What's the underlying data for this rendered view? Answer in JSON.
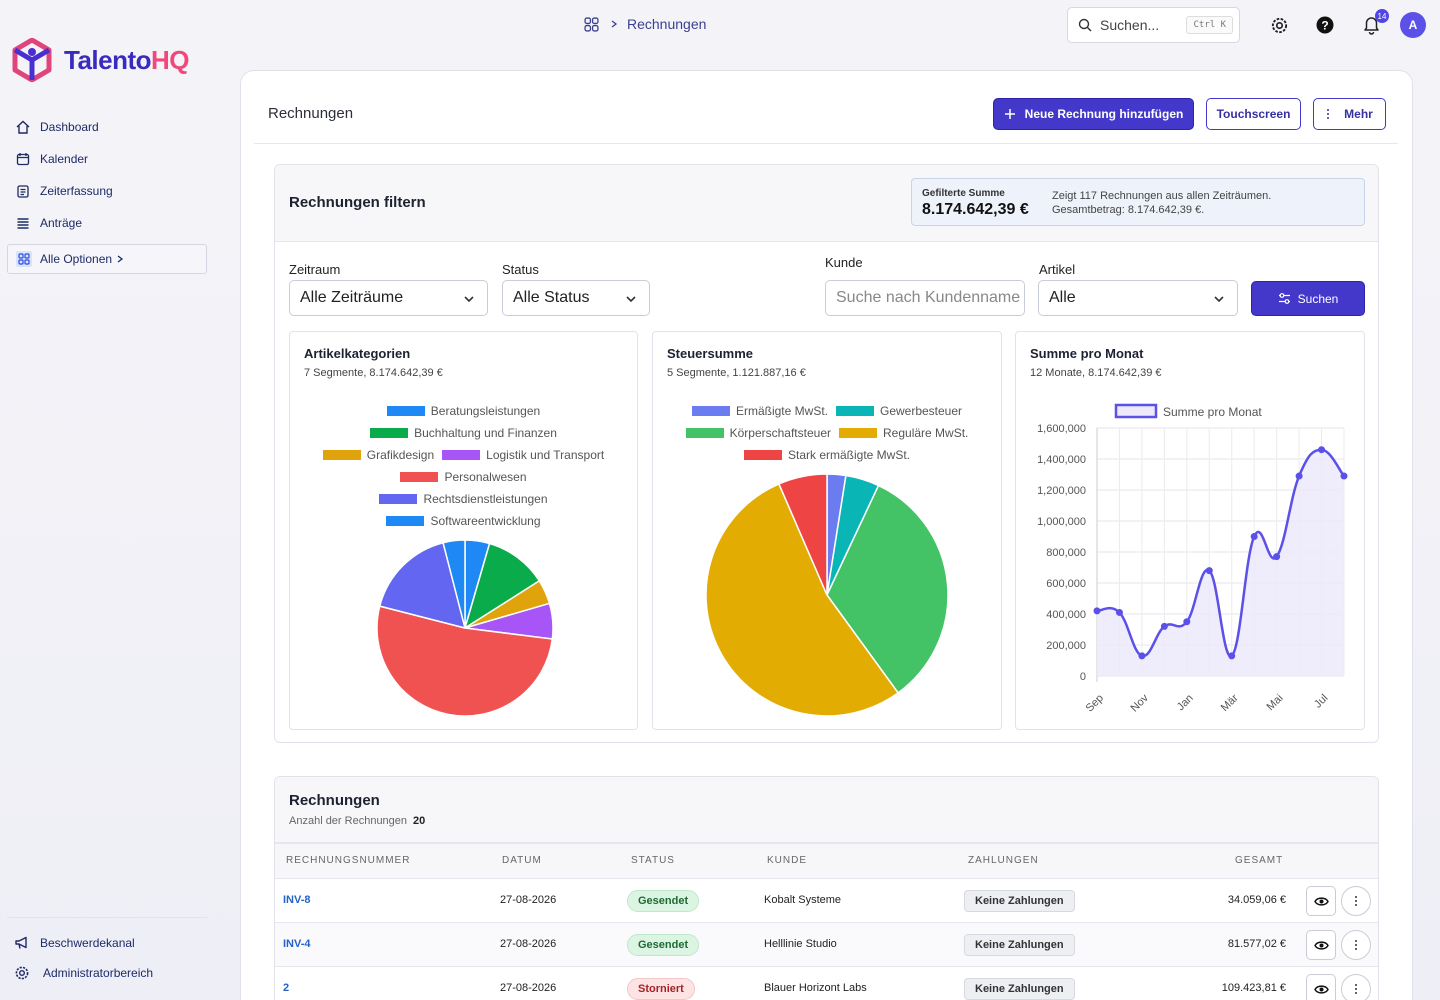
{
  "app": {
    "name_part1": "Talento",
    "name_part2": "HQ"
  },
  "sidebar": {
    "items": [
      {
        "label": "Dashboard",
        "icon": "home-icon"
      },
      {
        "label": "Kalender",
        "icon": "calendar-icon"
      },
      {
        "label": "Zeiterfassung",
        "icon": "clipboard-icon"
      },
      {
        "label": "Anträge",
        "icon": "list-icon"
      }
    ],
    "all_options": "Alle Optionen",
    "bottom": [
      {
        "label": "Beschwerdekanal",
        "icon": "megaphone-icon"
      },
      {
        "label": "Administratorbereich",
        "icon": "gear-icon"
      }
    ]
  },
  "topbar": {
    "breadcrumb": "Rechnungen",
    "search_label": "Suchen...",
    "search_shortcut": "Ctrl K",
    "notification_count": "14",
    "avatar_initial": "A"
  },
  "page": {
    "title": "Rechnungen",
    "btn_new": "Neue Rechnung hinzufügen",
    "btn_touch": "Touchscreen",
    "btn_more": "Mehr"
  },
  "filter": {
    "title": "Rechnungen filtern",
    "sum_label": "Gefilterte Summe",
    "sum_value": "8.174.642,39 €",
    "sum_desc1": "Zeigt 117 Rechnungen aus allen Zeiträumen.",
    "sum_desc2": "Gesamtbetrag: 8.174.642,39 €.",
    "zeitraum_label": "Zeitraum",
    "zeitraum_value": "Alle Zeiträume",
    "status_label": "Status",
    "status_value": "Alle Status",
    "kunde_label": "Kunde",
    "kunde_placeholder": "Suche nach Kundenname",
    "artikel_label": "Artikel",
    "artikel_value": "Alle",
    "search_btn": "Suchen"
  },
  "chart_data": [
    {
      "type": "pie",
      "title": "Artikelkategorien",
      "subtitle": "7 Segmente, 8.174.642,39 €",
      "categories": [
        "Beratungsleistungen",
        "Buchhaltung und Finanzen",
        "Grafikdesign",
        "Logistik und Transport",
        "Personalwesen",
        "Rechtsdienstleistungen",
        "Softwareentwicklung"
      ],
      "values": [
        4.5,
        11.5,
        4.5,
        6.5,
        52,
        17,
        4
      ],
      "colors": [
        "#1e88f5",
        "#0aab4b",
        "#e0a30c",
        "#a855f7",
        "#f05252",
        "#6366f1",
        "#1e88f5"
      ],
      "legend_rows": [
        [
          0
        ],
        [
          1
        ],
        [
          2,
          3
        ],
        [
          4
        ],
        [
          5
        ],
        [
          6
        ]
      ]
    },
    {
      "type": "pie",
      "title": "Steuersumme",
      "subtitle": "5 Segmente, 1.121.887,16 €",
      "categories": [
        "Ermäßigte MwSt.",
        "Gewerbesteuer",
        "Körperschaftsteuer",
        "Reguläre MwSt.",
        "Stark ermäßigte MwSt."
      ],
      "values": [
        2.5,
        4.5,
        33,
        53.5,
        6.5
      ],
      "colors": [
        "#6b7cf0",
        "#0ab5b5",
        "#44c266",
        "#e3ac02",
        "#ef4444"
      ],
      "legend_rows": [
        [
          0,
          1
        ],
        [
          2,
          3
        ],
        [
          4
        ]
      ]
    },
    {
      "type": "area",
      "title": "Summe pro Monat",
      "subtitle": "12 Monate, 8.174.642,39 €",
      "series": [
        {
          "name": "Summe pro Monat",
          "values": [
            420000,
            410000,
            130000,
            320000,
            350000,
            680000,
            130000,
            900000,
            770000,
            1290000,
            1460000,
            1290000
          ]
        }
      ],
      "x_tick_labels": [
        "Sep",
        "Nov",
        "Jan",
        "Mär",
        "Mai",
        "Jul"
      ],
      "y_ticks": [
        "0",
        "200,000",
        "400,000",
        "600,000",
        "800,000",
        "1,000,000",
        "1,200,000",
        "1,400,000",
        "1,600,000"
      ],
      "ylim": [
        0,
        1600000
      ],
      "color": "#5b50e8",
      "fill": "#ece9fb"
    }
  ],
  "table": {
    "title": "Rechnungen",
    "count_label": "Anzahl der Rechnungen",
    "count": "20",
    "columns": [
      "RECHNUNGSNUMMER",
      "DATUM",
      "STATUS",
      "KUNDE",
      "ZAHLUNGEN",
      "GESAMT"
    ],
    "rows": [
      {
        "nr": "INV-8",
        "datum": "27-08-2026",
        "status": "Gesendet",
        "status_kind": "green",
        "kunde": "Kobalt Systeme",
        "zahlungen": "Keine Zahlungen",
        "gesamt": "34.059,06 €"
      },
      {
        "nr": "INV-4",
        "datum": "27-08-2026",
        "status": "Gesendet",
        "status_kind": "green",
        "kunde": "Helllinie Studio",
        "zahlungen": "Keine Zahlungen",
        "gesamt": "81.577,02 €"
      },
      {
        "nr": "2",
        "datum": "27-08-2026",
        "status": "Storniert",
        "status_kind": "red",
        "kunde": "Blauer Horizont Labs",
        "zahlungen": "Keine Zahlungen",
        "gesamt": "109.423,81 €"
      }
    ]
  }
}
